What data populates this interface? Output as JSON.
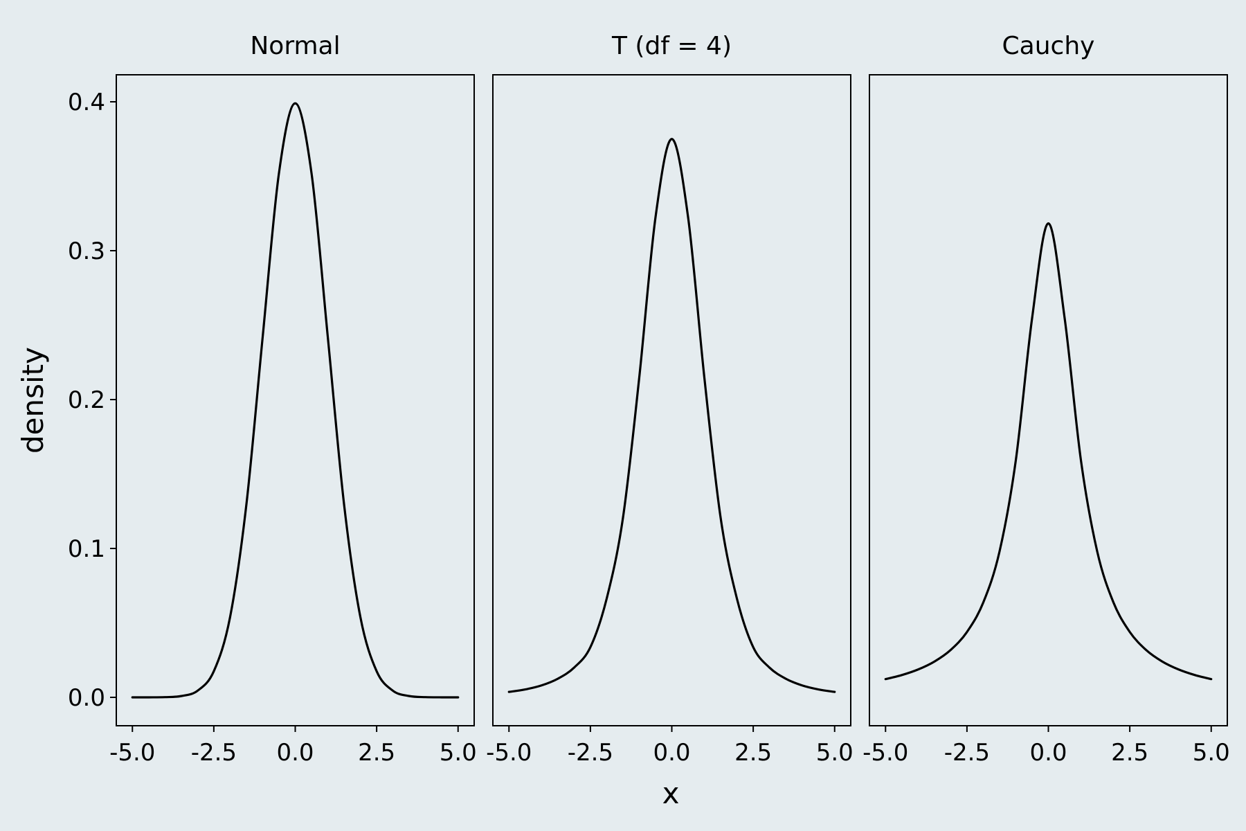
{
  "chart_data": {
    "type": "line",
    "xlabel": "x",
    "ylabel": "density",
    "xlim": [
      -5.0,
      5.0
    ],
    "ylim": [
      0.0,
      0.4
    ],
    "x_ticks": [
      "-5.0",
      "-2.5",
      "0.0",
      "2.5",
      "5.0"
    ],
    "y_ticks": [
      "0.0",
      "0.1",
      "0.2",
      "0.3",
      "0.4"
    ],
    "grid": false,
    "legend": "none",
    "line_color": "#000000",
    "background_color": "#e5ecef",
    "panels": [
      {
        "title": "Normal",
        "x": [
          -5,
          -4.5,
          -4,
          -3.5,
          -3,
          -2.5,
          -2,
          -1.5,
          -1,
          -0.5,
          0,
          0.5,
          1,
          1.5,
          2,
          2.5,
          3,
          3.5,
          4,
          4.5,
          5
        ],
        "y": [
          1.5e-06,
          1.6e-05,
          0.000134,
          0.000873,
          0.004432,
          0.017528,
          0.053991,
          0.129518,
          0.241971,
          0.352065,
          0.398942,
          0.352065,
          0.241971,
          0.129518,
          0.053991,
          0.017528,
          0.004432,
          0.000873,
          0.000134,
          1.6e-05,
          1.5e-06
        ]
      },
      {
        "title": "T (df = 4)",
        "x": [
          -5,
          -4.5,
          -4,
          -3.5,
          -3,
          -2.5,
          -2,
          -1.5,
          -1,
          -0.5,
          0,
          0.5,
          1,
          1.5,
          2,
          2.5,
          3,
          3.5,
          4,
          4.5,
          5
        ],
        "y": [
          0.00366,
          0.00532,
          0.00802,
          0.01251,
          0.01997,
          0.0337,
          0.06629,
          0.1205,
          0.21467,
          0.32249,
          0.375,
          0.32249,
          0.21467,
          0.1205,
          0.06629,
          0.0337,
          0.01997,
          0.01251,
          0.00802,
          0.00532,
          0.00366
        ]
      },
      {
        "title": "Cauchy",
        "x": [
          -5,
          -4.5,
          -4,
          -3.5,
          -3,
          -2.5,
          -2,
          -1.5,
          -1,
          -0.5,
          0,
          0.5,
          1,
          1.5,
          2,
          2.5,
          3,
          3.5,
          4,
          4.5,
          5
        ],
        "y": [
          0.01224,
          0.01497,
          0.01872,
          0.02403,
          0.03183,
          0.0439,
          0.06366,
          0.09794,
          0.15915,
          0.25465,
          0.31831,
          0.25465,
          0.15915,
          0.09794,
          0.06366,
          0.0439,
          0.03183,
          0.02403,
          0.01872,
          0.01497,
          0.01224
        ]
      }
    ]
  }
}
